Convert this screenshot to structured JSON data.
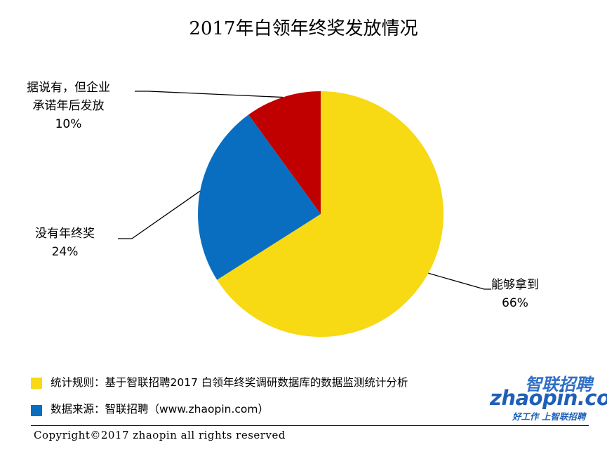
{
  "chart_data": {
    "type": "pie",
    "title": "2017年白领年终奖发放情况",
    "slices": [
      {
        "label_lines": [
          "能够拿到"
        ],
        "label": "能够拿到",
        "value": 66,
        "pct_text": "66%",
        "color": "#f7d914"
      },
      {
        "label_lines": [
          "没有年终奖"
        ],
        "label": "没有年终奖",
        "value": 24,
        "pct_text": "24%",
        "color": "#0a6ec0"
      },
      {
        "label_lines": [
          "据说有，但企业",
          "承诺年后发放"
        ],
        "label": "据说有，但企业承诺年后发放",
        "value": 10,
        "pct_text": "10%",
        "color": "#c00000"
      }
    ],
    "start": "12 o'clock, clockwise"
  },
  "notes": [
    {
      "text": "统计规则：基于智联招聘2017 白领年终奖调研数据库的数据监测统计分析",
      "color": "#f7d914"
    },
    {
      "text": "数据来源：智联招聘（www.zhaopin.com）",
      "color": "#0a6ec0"
    }
  ],
  "footer": {
    "copyright": "Copyright©2017 zhaopin all rights reserved"
  },
  "logo": {
    "cn": "智联招聘",
    "en": "zhaopin.com",
    "slogan": "好工作  上智联招聘"
  }
}
